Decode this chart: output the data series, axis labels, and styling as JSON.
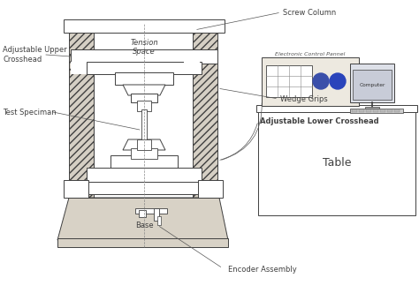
{
  "bg_color": "#f5f3ee",
  "line_color": "#404040",
  "hatch_color": "#404040",
  "label_color": "#222222",
  "figsize": [
    4.74,
    3.32
  ],
  "dpi": 100,
  "labels": {
    "tension_space": "Tension\nSpace",
    "screw_column": "Screw Column",
    "adj_upper": "Adjustable Upper\nCrosshead",
    "wedge_grips": "Wedge Grips",
    "test_specimen": "Test Speciman",
    "adj_lower": "Adjustable Lower Crosshead",
    "electronic_panel": "Electronic Control Pannel",
    "computer": "Computer",
    "table": "Table",
    "base": "Base",
    "encoder": "Encoder Assembly"
  }
}
